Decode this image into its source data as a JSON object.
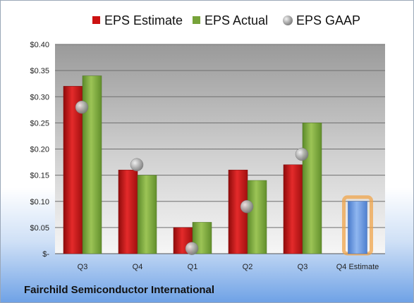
{
  "company_name": "Fairchild Semiconductor International",
  "chart_data": {
    "type": "bar",
    "categories": [
      "Q3",
      "Q4",
      "Q1",
      "Q2",
      "Q3",
      "Q4 Estimate"
    ],
    "series": [
      {
        "name": "EPS Estimate",
        "color": "#cc1111",
        "values": [
          0.32,
          0.16,
          0.05,
          0.16,
          0.17,
          null
        ]
      },
      {
        "name": "EPS Actual",
        "color": "#77a33a",
        "values": [
          0.34,
          0.15,
          0.06,
          0.14,
          0.25,
          null
        ]
      },
      {
        "name": "EPS GAAP",
        "type": "marker",
        "color": "#a9a9a9",
        "values": [
          0.28,
          0.17,
          0.01,
          0.09,
          0.19,
          null
        ]
      },
      {
        "name": "",
        "color": "#6d9ce6",
        "highlight": "#f0a44a",
        "values": [
          null,
          null,
          null,
          null,
          null,
          0.1
        ]
      }
    ],
    "yticks": [
      "$-",
      "$0.05",
      "$0.10",
      "$0.15",
      "$0.20",
      "$0.25",
      "$0.30",
      "$0.35",
      "$0.40"
    ],
    "ylim": [
      0,
      0.4
    ],
    "grid": true,
    "legend_position": "top"
  }
}
